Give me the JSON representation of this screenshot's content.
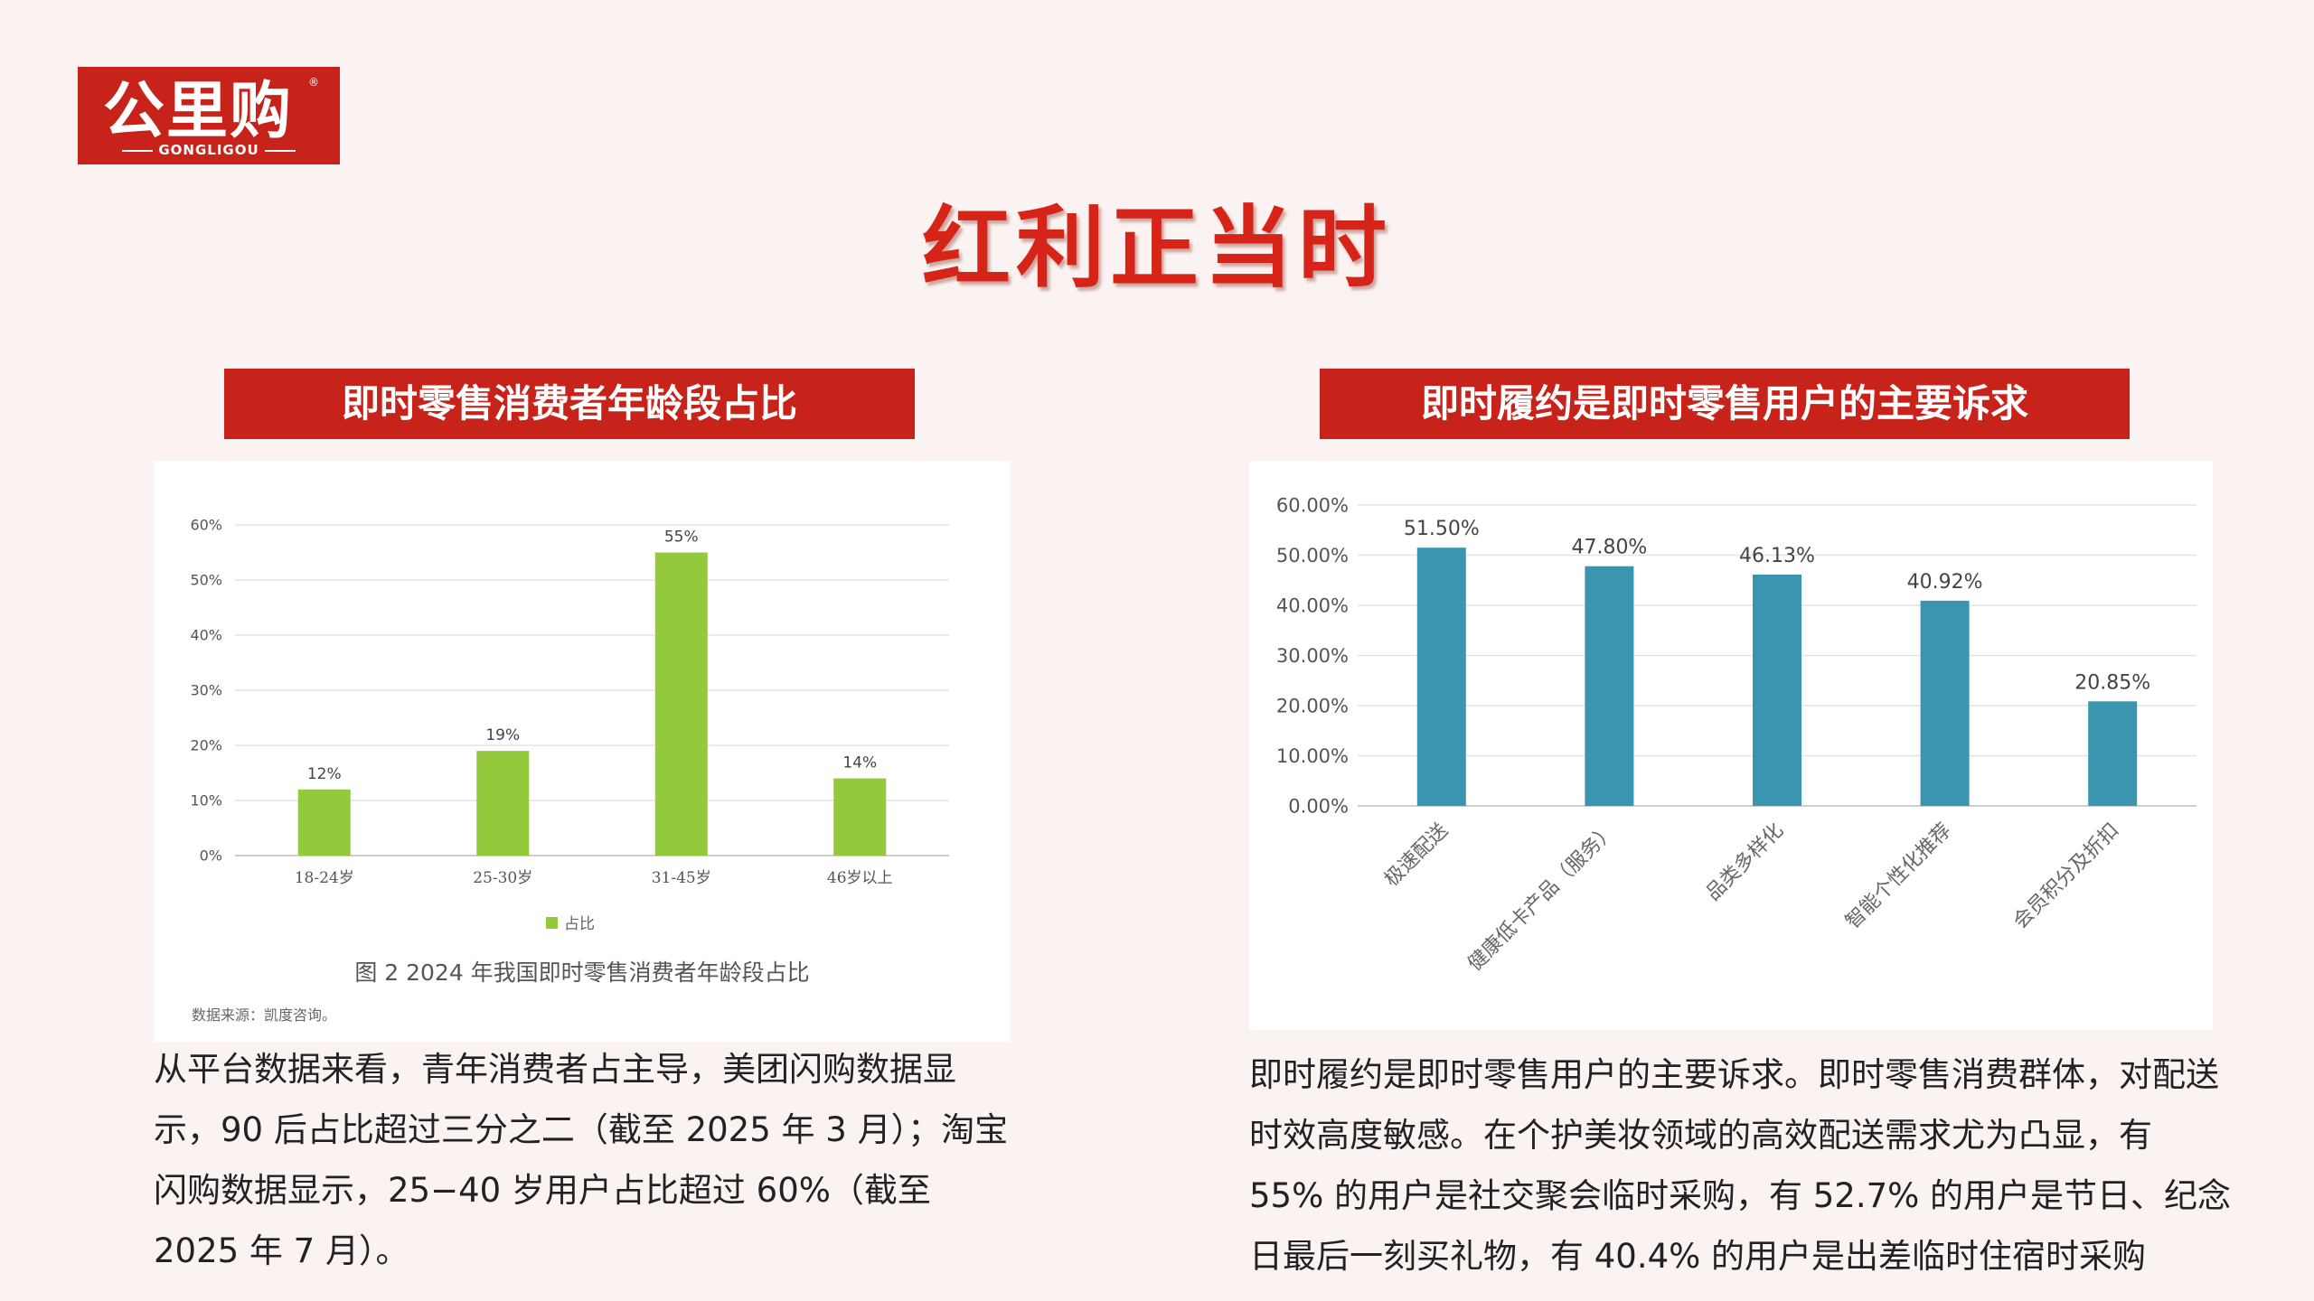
{
  "logo": {
    "main": "公里购",
    "sub": "GONGLIGOU",
    "reg": "®"
  },
  "page_title": "红利正当时",
  "left": {
    "header": "即时零售消费者年龄段占比",
    "caption": "图 2  2024 年我国即时零售消费者年龄段占比",
    "source": "数据来源：凯度咨询。",
    "paragraph": "从平台数据来看，青年消费者占主导，美团闪购数据显示，90 后占比超过三分之二（截至 2025 年 3 月）；淘宝闪购数据显示，25−40 岁用户占比超过 60%（截至 2025 年 7 月）。"
  },
  "right": {
    "header": "即时履约是即时零售用户的主要诉求",
    "paragraph": "即时履约是即时零售用户的主要诉求。即时零售消费群体，对配送时效高度敏感。在个护美妆领域的高效配送需求尤为凸显，有 55% 的用户是社交聚会临时采购，有 52.7% 的用户是节日、纪念日最后一刻买礼物，有 40.4% 的用户是出差临时住宿时采购"
  },
  "chart_data": [
    {
      "type": "bar",
      "categories": [
        "18-24岁",
        "25-30岁",
        "31-45岁",
        "46岁以上"
      ],
      "series": [
        {
          "name": "占比",
          "values": [
            12,
            19,
            55,
            14
          ]
        }
      ],
      "data_labels": [
        "12%",
        "19%",
        "55%",
        "14%"
      ],
      "yticks": [
        "0%",
        "10%",
        "20%",
        "30%",
        "40%",
        "50%",
        "60%"
      ],
      "ylim": [
        0,
        60
      ],
      "grid": true,
      "legend": "bottom",
      "color": "#95c93d"
    },
    {
      "type": "bar",
      "categories": [
        "极速配送",
        "健康低卡产品（服务）",
        "品类多样化",
        "智能个性化推荐",
        "会员积分及折扣"
      ],
      "series": [
        {
          "values": [
            51.5,
            47.8,
            46.13,
            40.92,
            20.85
          ]
        }
      ],
      "data_labels": [
        "51.50%",
        "47.80%",
        "46.13%",
        "40.92%",
        "20.85%"
      ],
      "yticks": [
        "0.00%",
        "10.00%",
        "20.00%",
        "30.00%",
        "40.00%",
        "50.00%",
        "60.00%"
      ],
      "ylim": [
        0,
        60
      ],
      "grid": true,
      "color": "#3a96b0"
    }
  ]
}
